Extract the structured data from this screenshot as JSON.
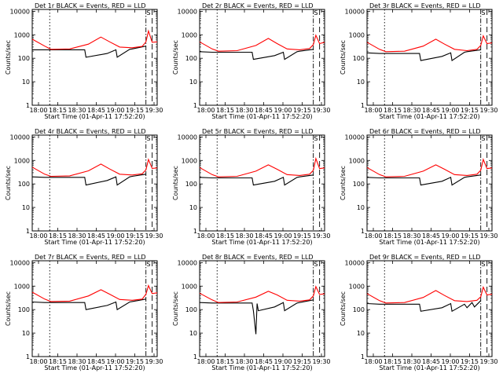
{
  "chart_data": [
    {
      "type": "line",
      "title": "Det 1r BLACK = Events, RED = LLD",
      "xlabel": "Start Time (01-Apr-11 17:52:20)",
      "ylabel": "Counts/sec",
      "xticks": [
        "18:00",
        "18:15",
        "18:30",
        "18:45",
        "19:00",
        "19:15",
        "19:30"
      ],
      "yticks": [
        "1",
        "10",
        "100",
        "1000",
        "10000"
      ],
      "ylim": [
        1,
        12000
      ],
      "log_y": true,
      "flag": "S",
      "series": [
        {
          "name": "BLACK = Events",
          "color": "#000000",
          "x": [
            0.0,
            0.1,
            0.15,
            0.42,
            0.43,
            0.6,
            0.67,
            0.68,
            0.78,
            0.8,
            0.91
          ],
          "y": [
            230,
            230,
            230,
            230,
            110,
            160,
            230,
            110,
            240,
            250,
            330
          ]
        },
        {
          "name": "RED = LLD",
          "color": "#ff0000",
          "x": [
            0.0,
            0.1,
            0.15,
            0.3,
            0.45,
            0.55,
            0.62,
            0.7,
            0.8,
            0.88,
            0.91,
            0.93,
            0.96,
            1.0
          ],
          "y": [
            650,
            330,
            240,
            250,
            400,
            800,
            500,
            300,
            280,
            320,
            500,
            1450,
            480,
            500
          ]
        }
      ]
    },
    {
      "type": "line",
      "title": "Det 2r BLACK = Events, RED = LLD",
      "xlabel": "Start Time (01-Apr-11 17:52:20)",
      "ylabel": "Counts/sec",
      "xticks": [
        "18:00",
        "18:15",
        "18:30",
        "18:45",
        "19:00",
        "19:15",
        "19:30"
      ],
      "yticks": [
        "1",
        "10",
        "100",
        "1000",
        "10000"
      ],
      "ylim": [
        1,
        12000
      ],
      "log_y": true,
      "flag": "S",
      "series": [
        {
          "name": "BLACK = Events",
          "color": "#000000",
          "x": [
            0.0,
            0.1,
            0.15,
            0.42,
            0.43,
            0.6,
            0.67,
            0.68,
            0.78,
            0.8,
            0.91
          ],
          "y": [
            190,
            180,
            180,
            180,
            90,
            130,
            180,
            90,
            190,
            200,
            240
          ]
        },
        {
          "name": "RED = LLD",
          "color": "#ff0000",
          "x": [
            0.0,
            0.1,
            0.15,
            0.3,
            0.45,
            0.55,
            0.62,
            0.7,
            0.8,
            0.88,
            0.91,
            0.93,
            0.96,
            1.0
          ],
          "y": [
            500,
            250,
            200,
            210,
            350,
            700,
            420,
            250,
            230,
            260,
            380,
            950,
            420,
            480
          ]
        }
      ]
    },
    {
      "type": "line",
      "title": "Det 3r BLACK = Events, RED = LLD",
      "xlabel": "Start Time (01-Apr-11 17:52:20)",
      "ylabel": "Counts/sec",
      "xticks": [
        "18:00",
        "18:15",
        "18:30",
        "18:45",
        "19:00",
        "19:15",
        "19:30"
      ],
      "yticks": [
        "1",
        "10",
        "100",
        "1000",
        "10000"
      ],
      "ylim": [
        1,
        12000
      ],
      "log_y": true,
      "flag": "S",
      "series": [
        {
          "name": "BLACK = Events",
          "color": "#000000",
          "x": [
            0.0,
            0.1,
            0.15,
            0.42,
            0.43,
            0.6,
            0.67,
            0.68,
            0.78,
            0.8,
            0.91
          ],
          "y": [
            170,
            160,
            160,
            160,
            80,
            120,
            170,
            80,
            180,
            190,
            230
          ]
        },
        {
          "name": "RED = LLD",
          "color": "#ff0000",
          "x": [
            0.0,
            0.1,
            0.15,
            0.3,
            0.45,
            0.55,
            0.62,
            0.7,
            0.8,
            0.88,
            0.91,
            0.93,
            0.96,
            1.0
          ],
          "y": [
            480,
            240,
            190,
            200,
            330,
            650,
            400,
            240,
            210,
            240,
            350,
            900,
            420,
            450
          ]
        }
      ]
    },
    {
      "type": "line",
      "title": "Det 4r BLACK = Events, RED = LLD",
      "xlabel": "Start Time (01-Apr-11 17:52:20)",
      "ylabel": "Counts/sec",
      "xticks": [
        "18:00",
        "18:15",
        "18:30",
        "18:45",
        "19:00",
        "19:15",
        "19:30"
      ],
      "yticks": [
        "1",
        "10",
        "100",
        "1000",
        "10000"
      ],
      "ylim": [
        1,
        12000
      ],
      "log_y": true,
      "flag": "S",
      "series": [
        {
          "name": "BLACK = Events",
          "color": "#000000",
          "x": [
            0.0,
            0.1,
            0.15,
            0.42,
            0.43,
            0.6,
            0.67,
            0.68,
            0.78,
            0.8,
            0.91
          ],
          "y": [
            200,
            190,
            190,
            190,
            90,
            140,
            200,
            90,
            200,
            210,
            260
          ]
        },
        {
          "name": "RED = LLD",
          "color": "#ff0000",
          "x": [
            0.0,
            0.1,
            0.15,
            0.3,
            0.45,
            0.55,
            0.62,
            0.7,
            0.8,
            0.88,
            0.91,
            0.93,
            0.96,
            1.0
          ],
          "y": [
            520,
            260,
            210,
            220,
            360,
            700,
            430,
            260,
            240,
            270,
            400,
            1100,
            460,
            480
          ]
        }
      ]
    },
    {
      "type": "line",
      "title": "Det 5r BLACK = Events, RED = LLD",
      "xlabel": "Start Time (01-Apr-11 17:52:20)",
      "ylabel": "Counts/sec",
      "xticks": [
        "18:00",
        "18:15",
        "18:30",
        "18:45",
        "19:00",
        "19:15",
        "19:30"
      ],
      "yticks": [
        "1",
        "10",
        "100",
        "1000",
        "10000"
      ],
      "ylim": [
        1,
        12000
      ],
      "log_y": true,
      "flag": "S",
      "series": [
        {
          "name": "BLACK = Events",
          "color": "#000000",
          "x": [
            0.0,
            0.1,
            0.15,
            0.42,
            0.43,
            0.6,
            0.67,
            0.68,
            0.78,
            0.8,
            0.91
          ],
          "y": [
            190,
            180,
            180,
            180,
            90,
            130,
            190,
            90,
            190,
            200,
            240
          ]
        },
        {
          "name": "RED = LLD",
          "color": "#ff0000",
          "x": [
            0.0,
            0.1,
            0.15,
            0.3,
            0.45,
            0.55,
            0.62,
            0.7,
            0.8,
            0.88,
            0.91,
            0.93,
            0.96,
            1.0
          ],
          "y": [
            500,
            250,
            200,
            210,
            350,
            650,
            420,
            250,
            230,
            260,
            380,
            1200,
            450,
            480
          ]
        }
      ]
    },
    {
      "type": "line",
      "title": "Det 6r BLACK = Events, RED = LLD",
      "xlabel": "Start Time (01-Apr-11 17:52:20)",
      "ylabel": "Counts/sec",
      "xticks": [
        "18:00",
        "18:15",
        "18:30",
        "18:45",
        "19:00",
        "19:15",
        "19:30"
      ],
      "yticks": [
        "1",
        "10",
        "100",
        "1000",
        "10000"
      ],
      "ylim": [
        1,
        12000
      ],
      "log_y": true,
      "flag": "S",
      "series": [
        {
          "name": "BLACK = Events",
          "color": "#000000",
          "x": [
            0.0,
            0.1,
            0.15,
            0.42,
            0.43,
            0.6,
            0.67,
            0.68,
            0.78,
            0.8,
            0.91
          ],
          "y": [
            190,
            180,
            180,
            180,
            90,
            130,
            190,
            90,
            190,
            200,
            240
          ]
        },
        {
          "name": "RED = LLD",
          "color": "#ff0000",
          "x": [
            0.0,
            0.1,
            0.15,
            0.3,
            0.45,
            0.55,
            0.62,
            0.7,
            0.8,
            0.88,
            0.91,
            0.93,
            0.96,
            1.0
          ],
          "y": [
            500,
            250,
            200,
            210,
            350,
            650,
            420,
            250,
            230,
            260,
            380,
            1100,
            450,
            480
          ]
        }
      ]
    },
    {
      "type": "line",
      "title": "Det 7r BLACK = Events, RED = LLD",
      "xlabel": "Start Time (01-Apr-11 17:52:20)",
      "ylabel": "Counts/sec",
      "xticks": [
        "18:00",
        "18:15",
        "18:30",
        "18:45",
        "19:00",
        "19:15",
        "19:30"
      ],
      "yticks": [
        "1",
        "10",
        "100",
        "1000",
        "10000"
      ],
      "ylim": [
        1,
        12000
      ],
      "log_y": true,
      "flag": "S",
      "series": [
        {
          "name": "BLACK = Events",
          "color": "#000000",
          "x": [
            0.0,
            0.1,
            0.15,
            0.42,
            0.43,
            0.6,
            0.67,
            0.68,
            0.78,
            0.8,
            0.91
          ],
          "y": [
            210,
            200,
            200,
            200,
            100,
            150,
            210,
            100,
            210,
            220,
            280
          ]
        },
        {
          "name": "RED = LLD",
          "color": "#ff0000",
          "x": [
            0.0,
            0.1,
            0.15,
            0.3,
            0.45,
            0.55,
            0.62,
            0.7,
            0.8,
            0.88,
            0.91,
            0.93,
            0.96,
            1.0
          ],
          "y": [
            550,
            280,
            220,
            230,
            380,
            700,
            450,
            270,
            250,
            280,
            450,
            1050,
            480,
            520
          ]
        }
      ]
    },
    {
      "type": "line",
      "title": "Det 8r BLACK = Events, RED = LLD",
      "xlabel": "Start Time (01-Apr-11 17:52:20)",
      "ylabel": "Counts/sec",
      "xticks": [
        "18:00",
        "18:15",
        "18:30",
        "18:45",
        "19:00",
        "19:15",
        "19:30"
      ],
      "yticks": [
        "1",
        "10",
        "100",
        "1000",
        "10000"
      ],
      "ylim": [
        1,
        12000
      ],
      "log_y": true,
      "flag": "S",
      "series": [
        {
          "name": "BLACK = Events",
          "color": "#000000",
          "x": [
            0.0,
            0.1,
            0.15,
            0.42,
            0.43,
            0.45,
            0.46,
            0.47,
            0.6,
            0.67,
            0.68,
            0.78,
            0.8,
            0.91
          ],
          "y": [
            200,
            190,
            190,
            190,
            90,
            9,
            180,
            90,
            130,
            200,
            90,
            190,
            200,
            260
          ]
        },
        {
          "name": "RED = LLD",
          "color": "#ff0000",
          "x": [
            0.0,
            0.1,
            0.15,
            0.3,
            0.45,
            0.55,
            0.62,
            0.7,
            0.8,
            0.88,
            0.91,
            0.93,
            0.96,
            1.0
          ],
          "y": [
            500,
            260,
            200,
            210,
            340,
            600,
            420,
            250,
            230,
            260,
            380,
            950,
            440,
            470
          ]
        }
      ]
    },
    {
      "type": "line",
      "title": "Det 9r BLACK = Events, RED = LLD",
      "xlabel": "Start Time (01-Apr-11 17:52:20)",
      "ylabel": "Counts/sec",
      "xticks": [
        "18:00",
        "18:15",
        "18:30",
        "18:45",
        "19:00",
        "19:15",
        "19:30"
      ],
      "yticks": [
        "1",
        "10",
        "100",
        "1000",
        "10000"
      ],
      "ylim": [
        1,
        12000
      ],
      "log_y": true,
      "flag": "S",
      "series": [
        {
          "name": "BLACK = Events",
          "color": "#000000",
          "x": [
            0.0,
            0.1,
            0.15,
            0.42,
            0.43,
            0.6,
            0.67,
            0.68,
            0.78,
            0.8,
            0.84,
            0.86,
            0.91
          ],
          "y": [
            180,
            170,
            170,
            170,
            85,
            120,
            180,
            85,
            170,
            120,
            200,
            130,
            240
          ]
        },
        {
          "name": "RED = LLD",
          "color": "#ff0000",
          "x": [
            0.0,
            0.1,
            0.15,
            0.3,
            0.45,
            0.55,
            0.62,
            0.7,
            0.8,
            0.88,
            0.91,
            0.93,
            0.96,
            1.0
          ],
          "y": [
            480,
            240,
            190,
            200,
            330,
            650,
            400,
            240,
            220,
            250,
            350,
            900,
            420,
            450
          ]
        }
      ]
    }
  ]
}
